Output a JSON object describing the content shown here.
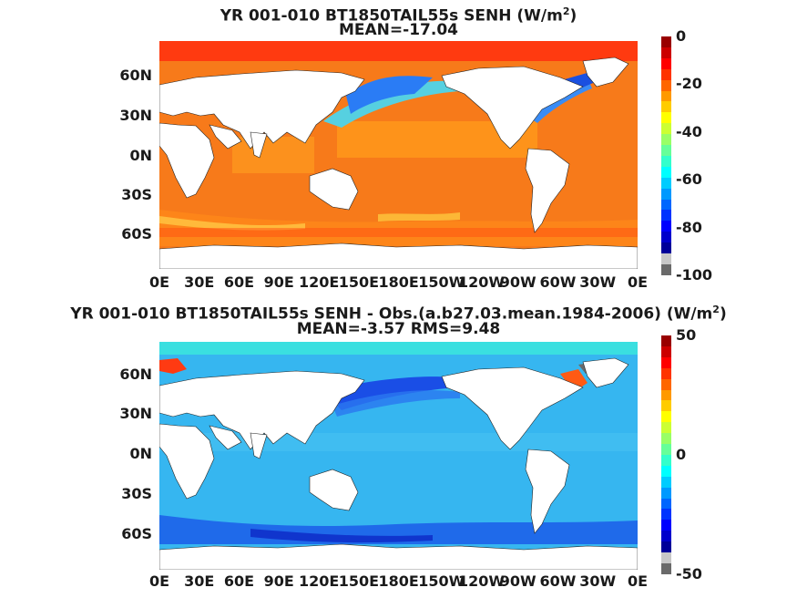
{
  "chart_data": [
    {
      "type": "heatmap",
      "title": "YR 001-010 BT1850TAIL55s  SENH (W/m",
      "title_sup": "2",
      "title_suffix": ")",
      "subtitle": "MEAN=-17.04",
      "field": "sensible heat flux",
      "x_ticks": [
        "0E",
        "30E",
        "60E",
        "90E",
        "120E",
        "150E",
        "180E",
        "150W",
        "120W",
        "90W",
        "60W",
        "30W",
        "0E"
      ],
      "y_ticks": [
        "60N",
        "30N",
        "0N",
        "30S",
        "60S"
      ],
      "y_tick_values": [
        60,
        30,
        0,
        -30,
        -60
      ],
      "colorbar": {
        "min": -100,
        "max": 0,
        "ticks": [
          "0",
          "-20",
          "-40",
          "-60",
          "-80",
          "-100"
        ]
      },
      "colormap": "jet",
      "land_color": "#ffffff",
      "ocean_base_color": "#f77a1a"
    },
    {
      "type": "heatmap",
      "title": "YR 001-010 BT1850TAIL55s SENH - Obs.(a.b27.03.mean.1984-2006) (W/m",
      "title_sup": "2",
      "title_suffix": ")",
      "subtitle": "MEAN=-3.57 RMS=9.48",
      "field": "sensible heat flux difference",
      "x_ticks": [
        "0E",
        "30E",
        "60E",
        "90E",
        "120E",
        "150E",
        "180E",
        "150W",
        "120W",
        "90W",
        "60W",
        "30W",
        "0E"
      ],
      "y_ticks": [
        "60N",
        "30N",
        "0N",
        "30S",
        "60S"
      ],
      "y_tick_values": [
        60,
        30,
        0,
        -30,
        -60
      ],
      "colorbar": {
        "min": -50,
        "max": 50,
        "ticks": [
          "50",
          "0",
          "-50"
        ]
      },
      "colormap": "jet",
      "land_color": "#ffffff",
      "ocean_base_color": "#36b6f0"
    }
  ]
}
